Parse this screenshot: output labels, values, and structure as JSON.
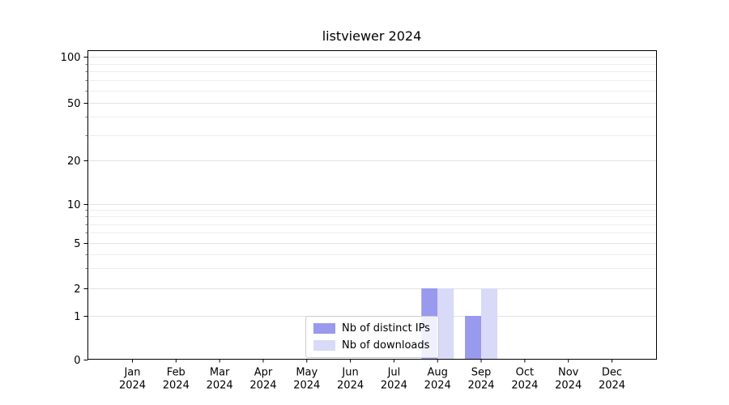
{
  "title": "listviewer 2024",
  "chart_data": {
    "type": "bar",
    "title": "listviewer 2024",
    "x_categories": [
      "Jan",
      "Feb",
      "Mar",
      "Apr",
      "May",
      "Jun",
      "Jul",
      "Aug",
      "Sep",
      "Oct",
      "Nov",
      "Dec"
    ],
    "x_year": "2024",
    "series": [
      {
        "name": "Nb of distinct IPs",
        "color": "#9999ee",
        "values": [
          0,
          0,
          0,
          0,
          0,
          0,
          0,
          2,
          1,
          0,
          0,
          0
        ]
      },
      {
        "name": "Nb of downloads",
        "color": "#d9d9f8",
        "values": [
          0,
          0,
          0,
          0,
          0,
          0,
          0,
          2,
          2,
          0,
          0,
          0
        ]
      }
    ],
    "y_scale": "symlog",
    "y_ticks": [
      0,
      1,
      2,
      5,
      10,
      20,
      50,
      100
    ],
    "ylim": [
      0,
      110
    ],
    "grid": "horizontal, log minor lines",
    "legend_position": "bottom-center-inside",
    "axis_color": "#000000",
    "grid_color_major": "#e3e3e3",
    "grid_color_minor": "#ededed"
  }
}
